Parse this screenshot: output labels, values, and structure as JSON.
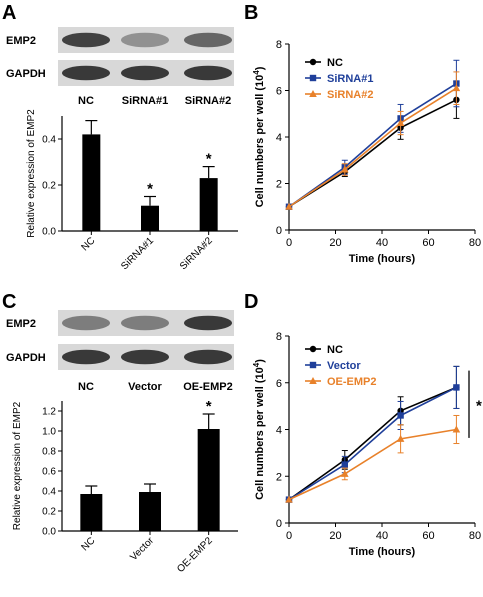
{
  "panels": {
    "A": {
      "letter": "A",
      "blot": {
        "row_labels": [
          "EMP2",
          "GAPDH"
        ],
        "lane_labels": [
          "NC",
          "SiRNA#1",
          "SiRNA#2"
        ],
        "band_intensity": {
          "EMP2": [
            0.85,
            0.3,
            0.6
          ],
          "GAPDH": [
            0.9,
            0.9,
            0.9
          ]
        }
      }
    },
    "B": {
      "letter": "B"
    },
    "C": {
      "letter": "C",
      "blot": {
        "row_labels": [
          "EMP2",
          "GAPDH"
        ],
        "lane_labels": [
          "NC",
          "Vector",
          "OE-EMP2"
        ],
        "band_intensity": {
          "EMP2": [
            0.45,
            0.45,
            0.9
          ],
          "GAPDH": [
            0.9,
            0.9,
            0.9
          ]
        }
      }
    },
    "D": {
      "letter": "D",
      "bracket_mark": "*"
    }
  },
  "chart_data": [
    {
      "id": "A-bar",
      "type": "bar",
      "ylabel": "Relative expression of EMP2",
      "categories": [
        "NC",
        "SiRNA#1",
        "SiRNA#2"
      ],
      "values": [
        0.42,
        0.11,
        0.23
      ],
      "errors": [
        0.06,
        0.04,
        0.05
      ],
      "sig": [
        "",
        "*",
        "*"
      ],
      "ylim": [
        0,
        0.5
      ],
      "yticks": [
        0.0,
        0.2,
        0.4
      ],
      "ytick_labels": [
        "0.0",
        "0.2",
        "0.4"
      ],
      "bar_color": "#000000"
    },
    {
      "id": "B-line",
      "type": "line",
      "xlabel": "Time (hours)",
      "ylabel": "Cell numbers per well (10",
      "ylabel_sup": "4",
      "ylabel_end": ")",
      "x": [
        0,
        24,
        48,
        72
      ],
      "xlim": [
        0,
        80
      ],
      "ylim": [
        0,
        8
      ],
      "xticks": [
        0,
        20,
        40,
        60,
        80
      ],
      "yticks": [
        0,
        2,
        4,
        6,
        8
      ],
      "legend": "top-left",
      "series": [
        {
          "name": "NC",
          "values": [
            1.0,
            2.5,
            4.4,
            5.6
          ],
          "errors": [
            0,
            0.2,
            0.5,
            0.8
          ],
          "color": "#000000",
          "marker": "circle"
        },
        {
          "name": "SiRNA#1",
          "values": [
            1.0,
            2.7,
            4.8,
            6.3
          ],
          "errors": [
            0,
            0.3,
            0.6,
            1.0
          ],
          "color": "#1f3f9a",
          "marker": "square"
        },
        {
          "name": "SiRNA#2",
          "values": [
            1.0,
            2.6,
            4.6,
            6.1
          ],
          "errors": [
            0,
            0.25,
            0.5,
            0.7
          ],
          "color": "#e8812a",
          "marker": "triangle"
        }
      ]
    },
    {
      "id": "C-bar",
      "type": "bar",
      "ylabel": "Relative expression of EMP2",
      "categories": [
        "NC",
        "Vector",
        "OE-EMP2"
      ],
      "values": [
        0.37,
        0.39,
        1.02
      ],
      "errors": [
        0.08,
        0.08,
        0.15
      ],
      "sig": [
        "",
        "",
        "*"
      ],
      "ylim": [
        0,
        1.3
      ],
      "yticks": [
        0.0,
        0.2,
        0.4,
        0.6,
        0.8,
        1.0,
        1.2
      ],
      "ytick_labels": [
        "0.0",
        "0.2",
        "0.4",
        "0.6",
        "0.8",
        "1.0",
        "1.2"
      ],
      "bar_color": "#000000"
    },
    {
      "id": "D-line",
      "type": "line",
      "xlabel": "Time (hours)",
      "ylabel": "Cell numbers per well (10",
      "ylabel_sup": "4",
      "ylabel_end": ")",
      "x": [
        0,
        24,
        48,
        72
      ],
      "xlim": [
        0,
        80
      ],
      "ylim": [
        0,
        8
      ],
      "xticks": [
        0,
        20,
        40,
        60,
        80
      ],
      "yticks": [
        0,
        2,
        4,
        6,
        8
      ],
      "legend": "top-left",
      "series": [
        {
          "name": "NC",
          "values": [
            1.0,
            2.7,
            4.8,
            5.8
          ],
          "errors": [
            0,
            0.4,
            0.6,
            0.9
          ],
          "color": "#000000",
          "marker": "circle"
        },
        {
          "name": "Vector",
          "values": [
            1.0,
            2.5,
            4.6,
            5.8
          ],
          "errors": [
            0,
            0.35,
            0.6,
            0.9
          ],
          "color": "#1f3f9a",
          "marker": "square"
        },
        {
          "name": "OE-EMP2",
          "values": [
            1.0,
            2.1,
            3.6,
            4.0
          ],
          "errors": [
            0,
            0.25,
            0.6,
            0.6
          ],
          "color": "#e8812a",
          "marker": "triangle"
        }
      ]
    }
  ]
}
